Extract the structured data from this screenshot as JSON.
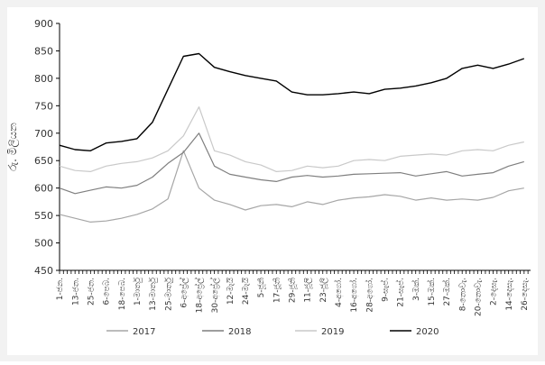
{
  "chart_data": {
    "type": "line",
    "title": "",
    "ylabel": "රු. මිලියන",
    "xlabel": "",
    "ylim": [
      450,
      900
    ],
    "yticks": [
      450,
      500,
      550,
      600,
      650,
      700,
      750,
      800,
      850,
      900
    ],
    "grid": false,
    "legend_position": "bottom",
    "x_tick_labels": [
      "1-ජන.",
      "13-ජන.",
      "25-ජන.",
      "6-පෙබ.",
      "18-පෙබ.",
      "1-මාර්තු",
      "13-මාර්තු",
      "25-මාර්තු",
      "6-අප්‍රේල්",
      "18-අප්‍රේල්",
      "30-අප්‍රේල්",
      "12-මැයි",
      "24-මැයි",
      "5-ජූනි",
      "17-ජූනි",
      "29-ජූනි",
      "11-ජූලි",
      "23-ජූලි",
      "4-අගෝ.",
      "16-අගෝ.",
      "28-අගෝ.",
      "9-සැප්.",
      "21-සැප්.",
      "3-ඔක්.",
      "15-ඔක්.",
      "27-ඔක්.",
      "8-නොවැ.",
      "20-නොවැ.",
      "2-දෙසැ.",
      "14-දෙසැ.",
      "26-දෙසැ."
    ],
    "x": [
      1,
      13,
      25,
      37,
      49,
      61,
      73,
      85,
      97,
      109,
      121,
      133,
      145,
      157,
      169,
      181,
      193,
      205,
      217,
      229,
      241,
      253,
      265,
      277,
      289,
      301,
      313,
      325,
      337,
      349,
      361
    ],
    "series": [
      {
        "name": "2017",
        "color": "#a6a6a6",
        "values": [
          552,
          545,
          538,
          540,
          545,
          552,
          562,
          580,
          668,
          600,
          578,
          570,
          560,
          568,
          570,
          566,
          575,
          570,
          578,
          582,
          584,
          588,
          585,
          578,
          582,
          578,
          580,
          578,
          583,
          595,
          600
        ]
      },
      {
        "name": "2018",
        "color": "#7f7f7f",
        "values": [
          600,
          590,
          596,
          602,
          600,
          605,
          620,
          645,
          665,
          700,
          640,
          625,
          620,
          615,
          612,
          620,
          623,
          620,
          622,
          625,
          626,
          627,
          628,
          622,
          626,
          630,
          622,
          625,
          628,
          640,
          648
        ]
      },
      {
        "name": "2019",
        "color": "#c9c9c9",
        "values": [
          640,
          632,
          630,
          640,
          645,
          648,
          655,
          668,
          695,
          748,
          668,
          660,
          648,
          642,
          630,
          632,
          640,
          637,
          640,
          650,
          652,
          650,
          658,
          660,
          662,
          660,
          668,
          670,
          668,
          678,
          684
        ]
      },
      {
        "name": "2020",
        "color": "#000000",
        "values": [
          678,
          670,
          668,
          682,
          685,
          690,
          720,
          780,
          840,
          845,
          820,
          812,
          805,
          800,
          795,
          775,
          770,
          770,
          772,
          775,
          772,
          780,
          782,
          786,
          792,
          800,
          818,
          824,
          818,
          826,
          836
        ]
      }
    ]
  }
}
